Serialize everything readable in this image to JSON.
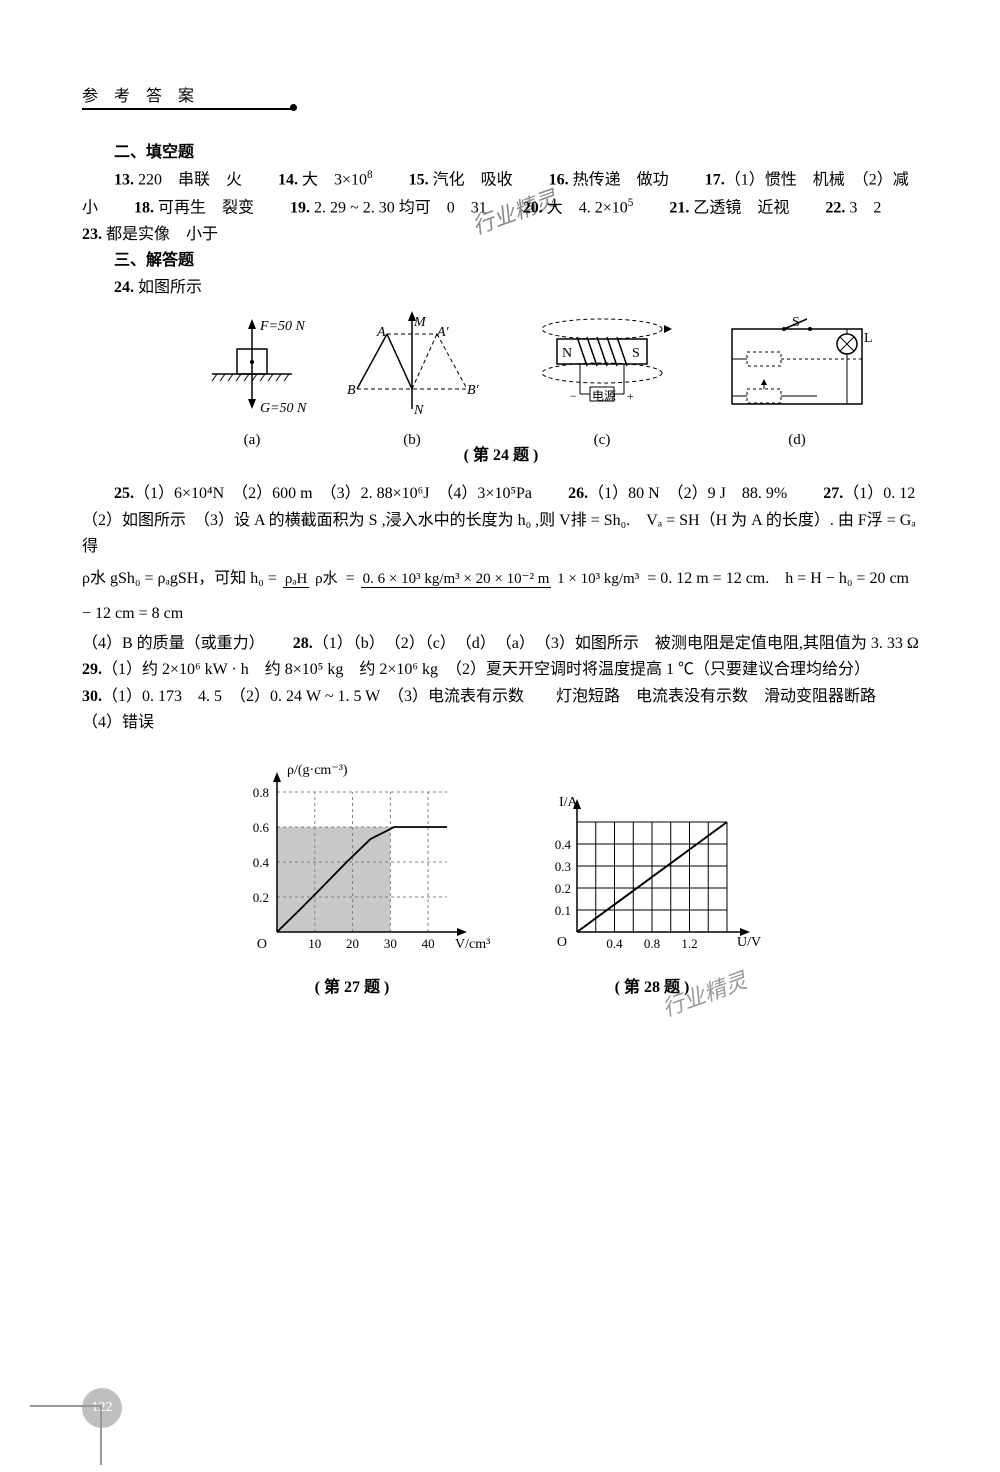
{
  "header": "参 考 答 案",
  "watermark": "行业精灵",
  "page_number": "122",
  "sections": {
    "fill_blank_title": "二、填空题",
    "fill_blank_body_line1_parts": [
      "13.",
      " 220　串联　火　　",
      "14.",
      " 大　3×10",
      "8",
      "　　",
      "15.",
      " 汽化　吸收　　",
      "16.",
      " 热传递　做功　　",
      "17.",
      "（1）惯性　机械　（2）减"
    ],
    "fill_blank_body_line2_parts": [
      "小　　",
      "18.",
      " 可再生　裂变　　",
      "19.",
      " 2. 29 ~ 2. 30 均可　0　31　　",
      "20.",
      " 大　4. 2×10",
      "5",
      "　　",
      "21.",
      " 乙透镜　近视　　",
      "22.",
      " 3　2"
    ],
    "fill_blank_body_line3_parts": [
      "23.",
      " 都是实像　小于"
    ],
    "answer_title": "三、解答题",
    "q24_intro": "24.",
    "q24_intro_tail": " 如图所示",
    "fig24": {
      "a": {
        "F_label": "F=50 N",
        "G_label": "G=50 N",
        "sub": "(a)"
      },
      "b": {
        "A": "A",
        "Ap": "A′",
        "M": "M",
        "B": "B",
        "Bp": "B′",
        "N": "N",
        "sub": "(b)"
      },
      "c": {
        "N": "N",
        "S": "S",
        "src": "电源",
        "sub": "(c)"
      },
      "d": {
        "S": "S",
        "L": "L",
        "sub": "(d)"
      },
      "caption": "( 第 24 题 )"
    },
    "q25": {
      "num": "25.",
      "body": "（1）6×10⁴N　（2）600 m　（3）2. 88×10⁶J　（4）3×10⁵Pa"
    },
    "q26": {
      "num": "26.",
      "body": "（1）80 N　（2）9 J　88. 9%"
    },
    "q27": {
      "num": "27.",
      "body_p1": "（1）0. 12　",
      "body_p2": "（2）如图所示　（3）设 A 的横截面积为 S ,浸入水中的长度为 h₀ ,则 V排 = Sh₀.　Vₐ = SH（H 为 A 的长度）. 由 F浮 = Gₐ 得",
      "eqn_left": "ρ水 gSh₀ = ρₐgSH，可知 h₀ = ",
      "frac1_num": "ρₐH",
      "frac1_den": "ρ水",
      "eq": " = ",
      "frac2_num": "0. 6 × 10³ kg/m³ × 20 × 10⁻² m",
      "frac2_den": "1 × 10³ kg/m³",
      "eqn_right": " = 0. 12 m = 12 cm.　h = H − h₀ = 20 cm − 12 cm = 8 cm",
      "body_p4": "（4）B 的质量（或重力）"
    },
    "q28": {
      "num": "28.",
      "body": "（1）（b）　（2）（c）　（d）　（a）　（3）如图所示　被测电阻是定值电阻,其阻值为 3. 33 Ω"
    },
    "q29": {
      "num": "29.",
      "body": "（1）约 2×10⁶ kW · h　约 8×10⁵ kg　约 2×10⁶ kg　（2）夏天开空调时将温度提高 1 ℃（只要建议合理均给分）"
    },
    "q30": {
      "num": "30.",
      "body": "（1）0. 173　4. 5　（2）0. 24 W ~ 1. 5 W　（3）电流表有示数　　灯泡短路　电流表没有示数　滑动变阻器断路",
      "body2": "（4）错误"
    },
    "chart27": {
      "type": "line",
      "ylabel": "ρ/(g·cm⁻³)",
      "xlabel": "V/cm³",
      "xticks": [
        "10",
        "20",
        "30",
        "40"
      ],
      "yticks": [
        "0.2",
        "0.4",
        "0.6",
        "0.8"
      ],
      "origin": "O",
      "caption": "( 第 27 题 )",
      "grid_dash": true,
      "shaded_upto_x": 30,
      "shaded_upto_y_ratio": 0.75,
      "line_points_norm": [
        [
          0.0,
          0.0
        ],
        [
          0.14,
          0.166
        ],
        [
          0.275,
          0.332
        ],
        [
          0.41,
          0.5
        ],
        [
          0.55,
          0.664
        ],
        [
          0.69,
          0.75
        ],
        [
          0.86,
          0.75
        ],
        [
          1.0,
          0.75
        ]
      ],
      "colors": {
        "axis": "#000000",
        "grid": "#808080",
        "shade": "#c8c8c8"
      }
    },
    "chart28": {
      "type": "line",
      "ylabel": "I/A",
      "xlabel": "U/V",
      "xticks": [
        "0.4",
        "0.8",
        "1.2"
      ],
      "yticks": [
        "0.1",
        "0.2",
        "0.3",
        "0.4"
      ],
      "origin": "O",
      "caption": "( 第 28 题 )",
      "grid_dash": false,
      "grid_cols": 8,
      "grid_rows": 5,
      "line_points_norm": [
        [
          0,
          0
        ],
        [
          1,
          1
        ]
      ],
      "colors": {
        "axis": "#000000",
        "grid": "#000000"
      }
    }
  }
}
